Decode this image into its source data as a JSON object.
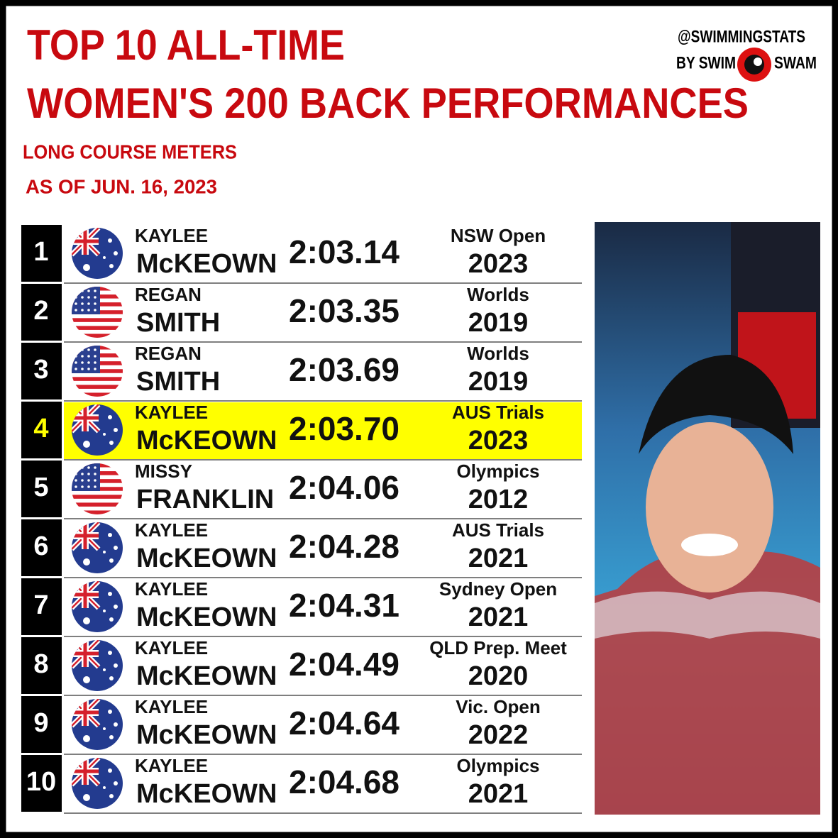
{
  "header": {
    "title_line1": "TOP 10 ALL-TIME",
    "title_line2": "WOMEN'S 200 BACK PERFORMANCES",
    "subtitle": "LONG COURSE METERS",
    "date": "AS OF JUN. 16, 2023"
  },
  "brand": {
    "handle": "@SWIMMINGSTATS",
    "by_left": "BY SWIM",
    "by_right": "SWAM"
  },
  "table": {
    "rows": [
      {
        "rank": "1",
        "first": "KAYLEE",
        "last": "McKEOWN",
        "time": "2:03.14",
        "meet": "NSW Open",
        "year": "2023"
      },
      {
        "rank": "2",
        "first": "REGAN",
        "last": "SMITH",
        "time": "2:03.35",
        "meet": "Worlds",
        "year": "2019"
      },
      {
        "rank": "3",
        "first": "REGAN",
        "last": "SMITH",
        "time": "2:03.69",
        "meet": "Worlds",
        "year": "2019"
      },
      {
        "rank": "4",
        "first": "KAYLEE",
        "last": "McKEOWN",
        "time": "2:03.70",
        "meet": "AUS Trials",
        "year": "2023"
      },
      {
        "rank": "5",
        "first": "MISSY",
        "last": "FRANKLIN",
        "time": "2:04.06",
        "meet": "Olympics",
        "year": "2012"
      },
      {
        "rank": "6",
        "first": "KAYLEE",
        "last": "McKEOWN",
        "time": "2:04.28",
        "meet": "AUS Trials",
        "year": "2021"
      },
      {
        "rank": "7",
        "first": "KAYLEE",
        "last": "McKEOWN",
        "time": "2:04.31",
        "meet": "Sydney Open",
        "year": "2021"
      },
      {
        "rank": "8",
        "first": "KAYLEE",
        "last": "McKEOWN",
        "time": "2:04.49",
        "meet": "QLD Prep. Meet",
        "year": "2020"
      },
      {
        "rank": "9",
        "first": "KAYLEE",
        "last": "McKEOWN",
        "time": "2:04.64",
        "meet": "Vic. Open",
        "year": "2022"
      },
      {
        "rank": "10",
        "first": "KAYLEE",
        "last": "McKEOWN",
        "time": "2:04.68",
        "meet": "Olympics",
        "year": "2021"
      }
    ]
  }
}
